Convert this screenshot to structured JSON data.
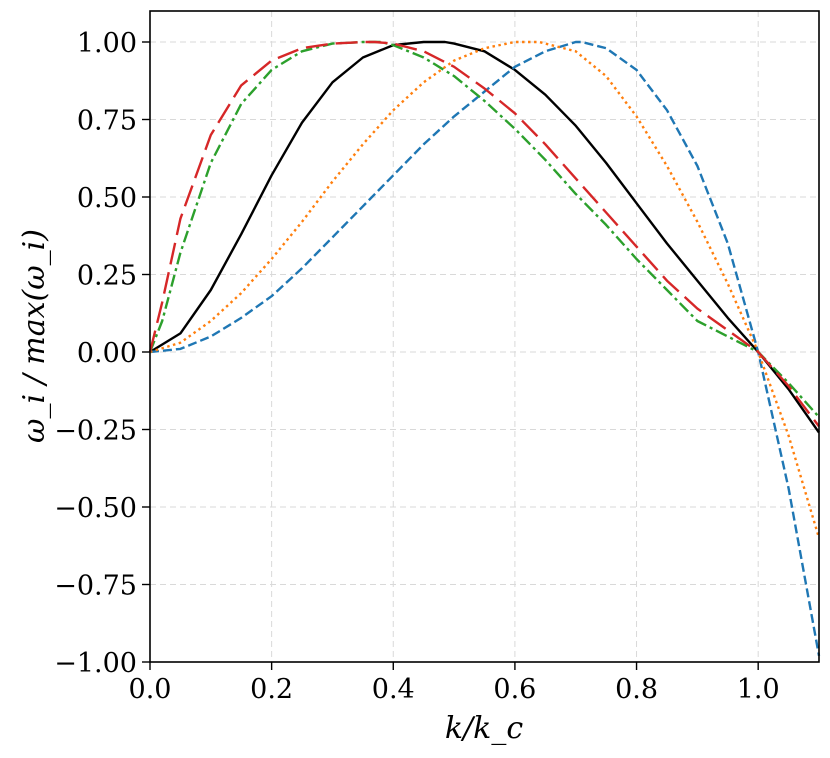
{
  "chart_data": {
    "type": "line",
    "xlabel": "k/k_c",
    "ylabel": "ω_i / max(ω_i)",
    "xlim": [
      0.0,
      1.1
    ],
    "ylim": [
      -1.0,
      1.1
    ],
    "xticks": [
      "0.0",
      "0.2",
      "0.4",
      "0.6",
      "0.8",
      "1.0"
    ],
    "yticks": [
      "−1.00",
      "−0.75",
      "−0.50",
      "−0.25",
      "0.00",
      "0.25",
      "0.50",
      "0.75",
      "1.00"
    ],
    "grid": true,
    "legend": "none",
    "series": [
      {
        "color": "#000000",
        "linestyle": "solid",
        "x": [
          0.0,
          0.05,
          0.1,
          0.15,
          0.2,
          0.25,
          0.3,
          0.35,
          0.4,
          0.45,
          0.485,
          0.5,
          0.55,
          0.6,
          0.65,
          0.7,
          0.75,
          0.8,
          0.85,
          0.9,
          0.95,
          1.0,
          1.05,
          1.1
        ],
        "y": [
          0.0,
          0.06,
          0.2,
          0.38,
          0.57,
          0.74,
          0.87,
          0.95,
          0.99,
          1.0,
          1.0,
          0.995,
          0.97,
          0.91,
          0.83,
          0.73,
          0.61,
          0.48,
          0.35,
          0.23,
          0.11,
          0.0,
          -0.12,
          -0.26
        ]
      },
      {
        "color": "#1f77b4",
        "linestyle": "dashed",
        "x": [
          0.0,
          0.05,
          0.1,
          0.15,
          0.2,
          0.25,
          0.3,
          0.35,
          0.4,
          0.45,
          0.5,
          0.55,
          0.6,
          0.65,
          0.7,
          0.71,
          0.75,
          0.8,
          0.85,
          0.9,
          0.95,
          1.0,
          1.05,
          1.1
        ],
        "y": [
          0.0,
          0.01,
          0.05,
          0.11,
          0.18,
          0.27,
          0.37,
          0.47,
          0.57,
          0.67,
          0.76,
          0.84,
          0.92,
          0.97,
          1.0,
          1.0,
          0.98,
          0.91,
          0.78,
          0.6,
          0.35,
          0.0,
          -0.44,
          -0.98
        ]
      },
      {
        "color": "#ff7f0e",
        "linestyle": "dotted",
        "x": [
          0.0,
          0.05,
          0.1,
          0.15,
          0.2,
          0.25,
          0.3,
          0.35,
          0.4,
          0.45,
          0.5,
          0.55,
          0.6,
          0.64,
          0.7,
          0.75,
          0.8,
          0.85,
          0.9,
          0.95,
          1.0,
          1.05,
          1.1
        ],
        "y": [
          0.0,
          0.03,
          0.1,
          0.19,
          0.3,
          0.42,
          0.55,
          0.67,
          0.78,
          0.87,
          0.94,
          0.98,
          1.0,
          1.0,
          0.97,
          0.89,
          0.76,
          0.6,
          0.42,
          0.22,
          0.0,
          -0.27,
          -0.6
        ]
      },
      {
        "color": "#2ca02c",
        "linestyle": "dashdot",
        "x": [
          0.0,
          0.02,
          0.05,
          0.1,
          0.15,
          0.2,
          0.25,
          0.3,
          0.35,
          0.38,
          0.4,
          0.45,
          0.5,
          0.55,
          0.6,
          0.65,
          0.7,
          0.75,
          0.8,
          0.85,
          0.9,
          0.95,
          1.0,
          1.05,
          1.1
        ],
        "y": [
          0.0,
          0.1,
          0.32,
          0.61,
          0.8,
          0.91,
          0.97,
          0.995,
          1.0,
          1.0,
          0.99,
          0.95,
          0.89,
          0.81,
          0.72,
          0.62,
          0.51,
          0.41,
          0.3,
          0.2,
          0.1,
          0.05,
          0.0,
          -0.1,
          -0.21
        ]
      },
      {
        "color": "#d62728",
        "linestyle": "longdash",
        "x": [
          0.0,
          0.02,
          0.05,
          0.1,
          0.15,
          0.2,
          0.25,
          0.3,
          0.35,
          0.37,
          0.4,
          0.45,
          0.5,
          0.55,
          0.6,
          0.65,
          0.7,
          0.75,
          0.8,
          0.85,
          0.9,
          0.95,
          1.0,
          1.05,
          1.1
        ],
        "y": [
          0.0,
          0.16,
          0.43,
          0.7,
          0.86,
          0.94,
          0.98,
          0.995,
          1.0,
          1.0,
          0.995,
          0.97,
          0.92,
          0.85,
          0.77,
          0.67,
          0.56,
          0.45,
          0.34,
          0.23,
          0.14,
          0.07,
          0.0,
          -0.11,
          -0.24
        ]
      }
    ]
  }
}
